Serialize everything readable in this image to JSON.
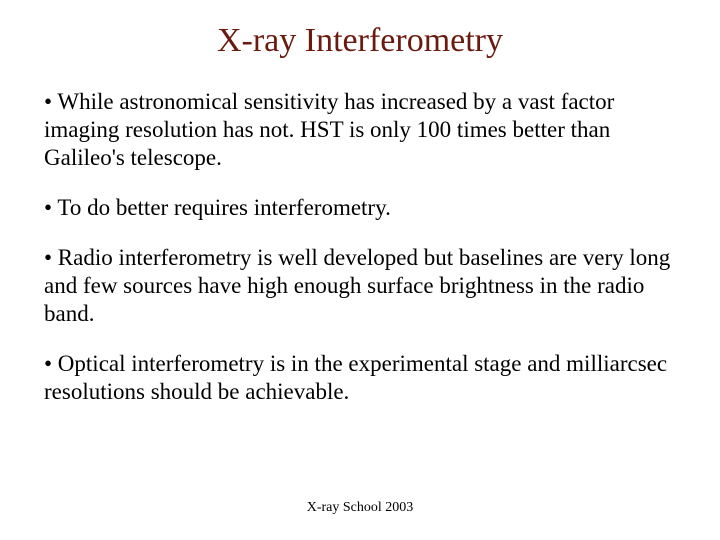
{
  "title": "X-ray Interferometry",
  "title_color": "#6b1a0f",
  "title_fontsize": 34,
  "body_fontsize": 23,
  "body_color": "#000000",
  "background_color": "#ffffff",
  "footer": "X-ray School 2003",
  "footer_fontsize": 14,
  "bullets": [
    "• While astronomical sensitivity has increased by a vast factor imaging resolution has not. HST is only 100 times better than Galileo's telescope.",
    "• To do better requires interferometry.",
    "• Radio interferometry is well developed but baselines are very long and few sources have high enough surface brightness in the radio band.",
    "• Optical interferometry is in the experimental stage and milliarcsec resolutions should be achievable."
  ]
}
